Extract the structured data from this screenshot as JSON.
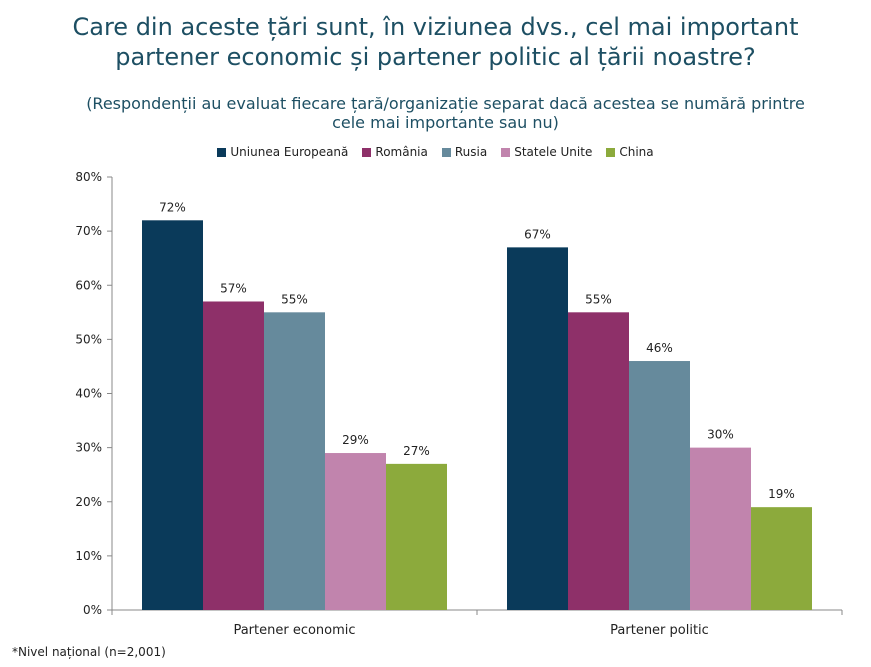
{
  "title_line1": "Care din aceste țări sunt, în viziunea dvs.,  cel mai important",
  "title_line2": "partener economic și partener politic al țării noastre?",
  "subtitle_line1": "(Respondenții au evaluat fiecare țară/organizație separat dacă acestea se numără printre",
  "subtitle_line2": "cele mai importante sau nu)",
  "footnote": "*Nivel național (n=2,001)",
  "chart_data": {
    "type": "bar",
    "categories": [
      "Partener economic",
      "Partener politic"
    ],
    "series": [
      {
        "name": "Uniunea Europeană",
        "color": "#0a3a5a",
        "values": [
          72,
          67
        ],
        "labels": [
          "72%",
          "67%"
        ]
      },
      {
        "name": "România",
        "color": "#8e3069",
        "values": [
          57,
          55
        ],
        "labels": [
          "57%",
          "55%"
        ]
      },
      {
        "name": "Rusia",
        "color": "#668a9c",
        "values": [
          55,
          46
        ],
        "labels": [
          "55%",
          "46%"
        ]
      },
      {
        "name": "Statele Unite",
        "color": "#c184ad",
        "values": [
          29,
          30
        ],
        "labels": [
          "29%",
          "30%"
        ]
      },
      {
        "name": "China",
        "color": "#8caa3c",
        "values": [
          27,
          19
        ],
        "labels": [
          "27%",
          "19%"
        ]
      }
    ],
    "ylim": [
      0,
      80
    ],
    "yticks": [
      0,
      10,
      20,
      30,
      40,
      50,
      60,
      70,
      80
    ],
    "ytick_labels": [
      "0%",
      "10%",
      "20%",
      "30%",
      "40%",
      "50%",
      "60%",
      "70%",
      "80%"
    ],
    "legend_position": "top",
    "grid": false
  }
}
